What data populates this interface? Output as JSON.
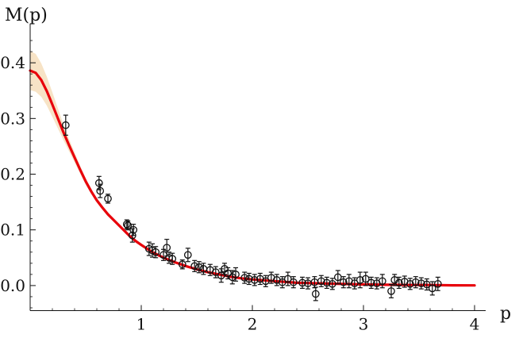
{
  "chart_data": {
    "type": "scatter",
    "title": "",
    "xlabel": "p",
    "ylabel": "M(p)",
    "xlim": [
      0,
      4.1
    ],
    "ylim": [
      -0.05,
      0.47
    ],
    "grid": false,
    "legend": "none",
    "x_ticks": [
      1,
      2,
      3,
      4
    ],
    "x_tick_labels": [
      "1",
      "2",
      "3",
      "4"
    ],
    "y_ticks": [
      0.0,
      0.1,
      0.2,
      0.3,
      0.4
    ],
    "y_tick_labels": [
      "0.0",
      "0.1",
      "0.2",
      "0.3",
      "0.4"
    ],
    "colors": {
      "fit": "#e8000b",
      "band": "#f7e3c6",
      "points": "#111111",
      "axes": "#111111"
    },
    "series": [
      {
        "kind": "points-with-errorbars",
        "x": [
          0.32,
          0.62,
          0.63,
          0.7,
          0.87,
          0.88,
          0.92,
          0.93,
          1.07,
          1.1,
          1.13,
          1.2,
          1.23,
          1.25,
          1.28,
          1.37,
          1.42,
          1.48,
          1.52,
          1.56,
          1.62,
          1.67,
          1.72,
          1.75,
          1.78,
          1.82,
          1.85,
          1.93,
          1.97,
          2.02,
          2.07,
          2.12,
          2.17,
          2.22,
          2.27,
          2.32,
          2.37,
          2.45,
          2.5,
          2.56,
          2.57,
          2.62,
          2.67,
          2.72,
          2.77,
          2.82,
          2.87,
          2.92,
          2.97,
          3.02,
          3.07,
          3.12,
          3.17,
          3.25,
          3.28,
          3.32,
          3.37,
          3.42,
          3.47,
          3.52,
          3.57,
          3.62,
          3.67
        ],
        "y": [
          0.288,
          0.184,
          0.17,
          0.156,
          0.11,
          0.108,
          0.09,
          0.1,
          0.066,
          0.063,
          0.06,
          0.055,
          0.068,
          0.05,
          0.048,
          0.038,
          0.055,
          0.035,
          0.033,
          0.03,
          0.028,
          0.024,
          0.018,
          0.03,
          0.022,
          0.015,
          0.02,
          0.014,
          0.012,
          0.01,
          0.012,
          0.008,
          0.014,
          0.01,
          0.006,
          0.012,
          0.006,
          0.005,
          0.004,
          0.006,
          -0.015,
          0.008,
          0.005,
          0.003,
          0.015,
          0.006,
          0.008,
          0.004,
          0.01,
          0.012,
          0.005,
          0.004,
          0.008,
          -0.01,
          0.01,
          0.005,
          0.007,
          0.003,
          0.006,
          0.004,
          0.002,
          -0.005,
          0.003
        ],
        "err": [
          0.018,
          0.012,
          0.012,
          0.008,
          0.008,
          0.008,
          0.012,
          0.01,
          0.012,
          0.012,
          0.01,
          0.01,
          0.015,
          0.01,
          0.01,
          0.008,
          0.012,
          0.01,
          0.01,
          0.01,
          0.01,
          0.01,
          0.012,
          0.01,
          0.01,
          0.012,
          0.012,
          0.01,
          0.01,
          0.01,
          0.01,
          0.01,
          0.01,
          0.01,
          0.01,
          0.012,
          0.01,
          0.01,
          0.01,
          0.01,
          0.012,
          0.01,
          0.01,
          0.01,
          0.012,
          0.01,
          0.012,
          0.01,
          0.014,
          0.012,
          0.01,
          0.01,
          0.012,
          0.012,
          0.01,
          0.01,
          0.01,
          0.01,
          0.01,
          0.01,
          0.01,
          0.012,
          0.012
        ]
      },
      {
        "kind": "fit-curve",
        "x": [
          0.0,
          0.05,
          0.1,
          0.15,
          0.2,
          0.25,
          0.3,
          0.35,
          0.4,
          0.45,
          0.5,
          0.55,
          0.6,
          0.65,
          0.7,
          0.75,
          0.8,
          0.85,
          0.9,
          0.95,
          1.0,
          1.1,
          1.2,
          1.3,
          1.4,
          1.5,
          1.6,
          1.7,
          1.8,
          1.9,
          2.0,
          2.2,
          2.4,
          2.6,
          2.8,
          3.0,
          3.2,
          3.4,
          3.6,
          3.8,
          4.0
        ],
        "y": [
          0.386,
          0.382,
          0.369,
          0.349,
          0.325,
          0.3,
          0.275,
          0.252,
          0.23,
          0.208,
          0.187,
          0.169,
          0.153,
          0.14,
          0.128,
          0.118,
          0.108,
          0.098,
          0.088,
          0.08,
          0.073,
          0.06,
          0.05,
          0.042,
          0.035,
          0.029,
          0.024,
          0.02,
          0.016,
          0.013,
          0.011,
          0.008,
          0.005,
          0.004,
          0.003,
          0.002,
          0.0015,
          0.001,
          0.001,
          0.0005,
          0.0003
        ],
        "band_half_width": [
          0.035,
          0.034,
          0.03,
          0.026,
          0.022,
          0.018,
          0.014,
          0.011,
          0.009,
          0.007,
          0.006,
          0.005,
          0.004,
          0.004,
          0.004,
          0.003,
          0.003,
          0.003,
          0.003,
          0.003,
          0.003,
          0.003,
          0.002,
          0.002,
          0.002,
          0.002,
          0.002,
          0.002,
          0.002,
          0.002,
          0.002,
          0.002,
          0.001,
          0.001,
          0.001,
          0.001,
          0.001,
          0.001,
          0.001,
          0.001,
          0.001
        ]
      }
    ]
  }
}
